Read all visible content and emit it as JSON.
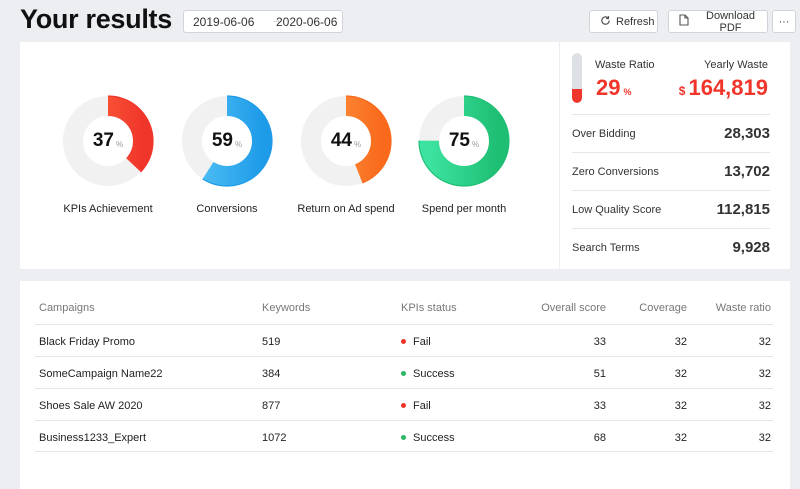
{
  "header": {
    "title": "Your results",
    "date_start": "2019-06-06",
    "date_separator": "→",
    "date_end": "2020-06-06",
    "refresh_label": "Refresh",
    "download_label": "Download PDF",
    "more_label": "···"
  },
  "gauges": [
    {
      "value": 37,
      "unit": "%",
      "label": "KPIs Achievement",
      "color": "#f0352b",
      "color2": "#ff6a3d"
    },
    {
      "value": 59,
      "unit": "%",
      "label": "Conversions",
      "color": "#1e9be8",
      "color2": "#53c2f5"
    },
    {
      "value": 44,
      "unit": "%",
      "label": "Return on Ad spend",
      "color": "#f96a1c",
      "color2": "#ff9a45"
    },
    {
      "value": 75,
      "unit": "%",
      "label": "Spend per month",
      "color": "#1ebe73",
      "color2": "#3ce3a0"
    }
  ],
  "waste": {
    "ratio_label": "Waste Ratio",
    "ratio_value": "29",
    "ratio_unit": "%",
    "ratio_fraction": 0.29,
    "yearly_label": "Yearly Waste",
    "yearly_currency": "$",
    "yearly_value": "164,819",
    "accent": "#f0352b"
  },
  "metrics": [
    {
      "label": "Over Bidding",
      "value": "28,303"
    },
    {
      "label": "Zero Conversions",
      "value": "13,702"
    },
    {
      "label": "Low Quality Score",
      "value": "112,815"
    },
    {
      "label": "Search Terms",
      "value": "9,928"
    }
  ],
  "table": {
    "columns": [
      "Campaigns",
      "Keywords",
      "KPIs status",
      "Overall score",
      "Coverage",
      "Waste ratio"
    ],
    "rows": [
      {
        "campaign": "Black Friday Promo",
        "keywords": "519",
        "status": "Fail",
        "status_color": "#f0352b",
        "score": "33",
        "coverage": "32",
        "waste": "32"
      },
      {
        "campaign": "SomeCampaign Name22",
        "keywords": "384",
        "status": "Success",
        "status_color": "#2ab865",
        "score": "51",
        "coverage": "32",
        "waste": "32"
      },
      {
        "campaign": "Shoes Sale AW 2020",
        "keywords": "877",
        "status": "Fail",
        "status_color": "#f0352b",
        "score": "33",
        "coverage": "32",
        "waste": "32"
      },
      {
        "campaign": "Business1233_Expert",
        "keywords": "1072",
        "status": "Success",
        "status_color": "#2ab865",
        "score": "68",
        "coverage": "32",
        "waste": "32"
      }
    ]
  }
}
